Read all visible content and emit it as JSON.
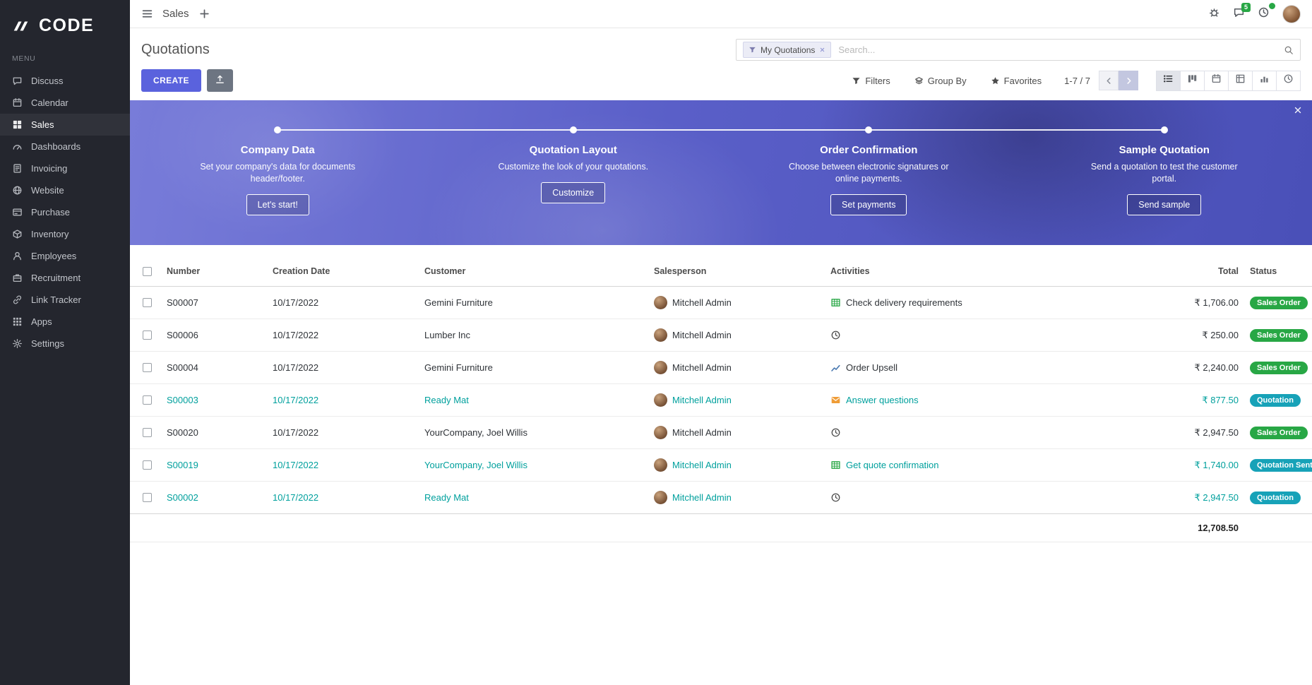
{
  "colors": {
    "primary": "#5a62dd",
    "teal": "#00a09d",
    "success": "#28a745",
    "info": "#17a2b8"
  },
  "sidebar": {
    "logo_text": "CODE",
    "menu_label": "MENU",
    "items": [
      {
        "label": "Discuss",
        "icon": "discuss-icon"
      },
      {
        "label": "Calendar",
        "icon": "calendar-icon"
      },
      {
        "label": "Sales",
        "icon": "sales-icon",
        "active": true
      },
      {
        "label": "Dashboards",
        "icon": "dashboards-icon"
      },
      {
        "label": "Invoicing",
        "icon": "invoicing-icon"
      },
      {
        "label": "Website",
        "icon": "website-icon"
      },
      {
        "label": "Purchase",
        "icon": "purchase-icon"
      },
      {
        "label": "Inventory",
        "icon": "inventory-icon"
      },
      {
        "label": "Employees",
        "icon": "employees-icon"
      },
      {
        "label": "Recruitment",
        "icon": "recruitment-icon"
      },
      {
        "label": "Link Tracker",
        "icon": "link-tracker-icon"
      },
      {
        "label": "Apps",
        "icon": "apps-icon"
      },
      {
        "label": "Settings",
        "icon": "settings-icon"
      }
    ]
  },
  "topbar": {
    "app_title": "Sales",
    "hamburger_icon": "hamburger-icon",
    "plus_icon": "plus-icon",
    "systray": [
      {
        "icon": "bug-icon"
      },
      {
        "icon": "messages-icon",
        "badge": "5"
      },
      {
        "icon": "activities-icon",
        "badge": ""
      },
      {
        "avatar": true
      }
    ]
  },
  "control_panel": {
    "title": "Quotations",
    "search": {
      "facet_label": "My Quotations",
      "facet_icon": "funnel-icon",
      "remove_icon": "close-icon",
      "placeholder": "Search...",
      "icon": "search-icon"
    },
    "create_label": "CREATE",
    "import_icon": "upload-icon",
    "toolbar": [
      {
        "label": "Filters",
        "icon": "funnel-icon"
      },
      {
        "label": "Group By",
        "icon": "layers-icon"
      },
      {
        "label": "Favorites",
        "icon": "star-icon"
      }
    ],
    "pager": {
      "text": "1-7 / 7",
      "prev_icon": "chevron-left-icon",
      "next_icon": "chevron-right-icon"
    },
    "views": [
      {
        "icon": "list-view-icon",
        "active": true
      },
      {
        "icon": "kanban-view-icon"
      },
      {
        "icon": "calendar-view-icon"
      },
      {
        "icon": "pivot-view-icon"
      },
      {
        "icon": "graph-view-icon"
      },
      {
        "icon": "activity-view-icon"
      }
    ]
  },
  "banner": {
    "close_icon": "close-icon",
    "steps": [
      {
        "title": "Company Data",
        "desc": "Set your company's data for documents header/footer.",
        "button": "Let's start!"
      },
      {
        "title": "Quotation Layout",
        "desc": "Customize the look of your quotations.",
        "button": "Customize"
      },
      {
        "title": "Order Confirmation",
        "desc": "Choose between electronic signatures or online payments.",
        "button": "Set payments"
      },
      {
        "title": "Sample Quotation",
        "desc": "Send a quotation to test the customer portal.",
        "button": "Send sample"
      }
    ]
  },
  "table": {
    "headers": [
      {
        "label": "Number"
      },
      {
        "label": "Creation Date"
      },
      {
        "label": "Customer"
      },
      {
        "label": "Salesperson"
      },
      {
        "label": "Activities"
      },
      {
        "label": "Total",
        "align": "right"
      },
      {
        "label": "Status"
      }
    ],
    "rows": [
      {
        "number": "S00007",
        "date": "10/17/2022",
        "customer": "Gemini Furniture",
        "salesperson": "Mitchell Admin",
        "activity": "Check delivery requirements",
        "activity_icon": "table-activity-icon",
        "total": "₹ 1,706.00",
        "status": "Sales Order",
        "status_type": "success",
        "style": ""
      },
      {
        "number": "S00006",
        "date": "10/17/2022",
        "customer": "Lumber Inc",
        "salesperson": "Mitchell Admin",
        "activity": "",
        "activity_icon": "clock-activity-icon",
        "total": "₹ 250.00",
        "status": "Sales Order",
        "status_type": "success",
        "style": ""
      },
      {
        "number": "S00004",
        "date": "10/17/2022",
        "customer": "Gemini Furniture",
        "salesperson": "Mitchell Admin",
        "activity": "Order Upsell",
        "activity_icon": "chart-activity-icon",
        "total": "₹ 2,240.00",
        "status": "Sales Order",
        "status_type": "success",
        "style": ""
      },
      {
        "number": "S00003",
        "date": "10/17/2022",
        "customer": "Ready Mat",
        "salesperson": "Mitchell Admin",
        "activity": "Answer questions",
        "activity_icon": "mail-activity-icon",
        "total": "₹ 877.50",
        "status": "Quotation",
        "status_type": "info",
        "style": "teal"
      },
      {
        "number": "S00020",
        "date": "10/17/2022",
        "customer": "YourCompany, Joel Willis",
        "salesperson": "Mitchell Admin",
        "activity": "",
        "activity_icon": "clock-activity-icon",
        "total": "₹ 2,947.50",
        "status": "Sales Order",
        "status_type": "success",
        "style": ""
      },
      {
        "number": "S00019",
        "date": "10/17/2022",
        "customer": "YourCompany, Joel Willis",
        "salesperson": "Mitchell Admin",
        "activity": "Get quote confirmation",
        "activity_icon": "table-activity-icon",
        "total": "₹ 1,740.00",
        "status": "Quotation Sent",
        "status_type": "info",
        "style": "teal"
      },
      {
        "number": "S00002",
        "date": "10/17/2022",
        "customer": "Ready Mat",
        "salesperson": "Mitchell Admin",
        "activity": "",
        "activity_icon": "clock-activity-icon",
        "total": "₹ 2,947.50",
        "status": "Quotation",
        "status_type": "info",
        "style": "teal"
      }
    ],
    "footer_total": "12,708.50"
  }
}
